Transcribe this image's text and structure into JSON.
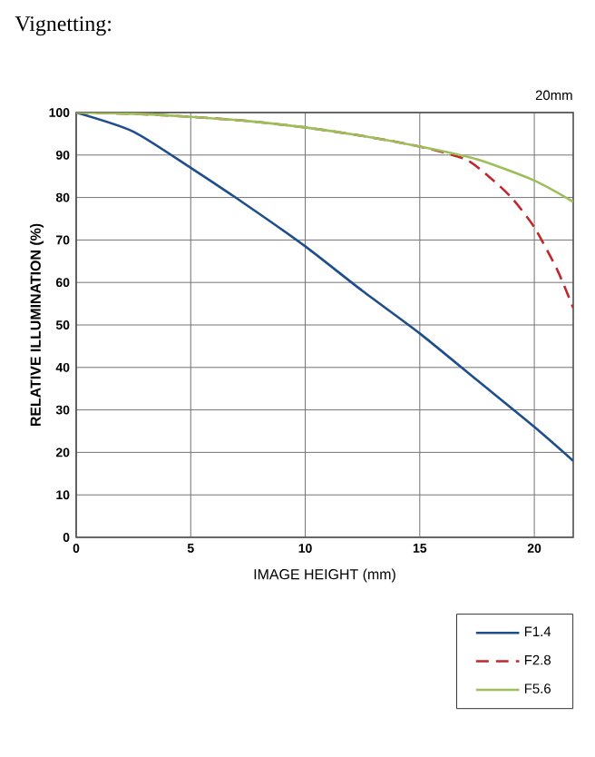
{
  "chart_data": {
    "type": "line",
    "title": "Vignetting:",
    "subtitle": "20mm",
    "xlabel": "IMAGE HEIGHT (mm)",
    "ylabel": "RELATIVE ILLUMINATION (%)",
    "xlim": [
      0,
      21.7
    ],
    "ylim": [
      0,
      100
    ],
    "xticks": [
      0,
      5,
      10,
      15,
      20
    ],
    "yticks": [
      0,
      10,
      20,
      30,
      40,
      50,
      60,
      70,
      80,
      90,
      100
    ],
    "grid": true,
    "legend": "bottom right",
    "marker": "none",
    "series": [
      {
        "name": "F1.4",
        "color": "#1f4e8c",
        "line_style": "solid",
        "x": [
          0,
          2.5,
          5,
          7.5,
          10,
          12.5,
          15,
          17.5,
          20,
          21.7
        ],
        "values": [
          100,
          95.5,
          87,
          78,
          68.5,
          58,
          48,
          37,
          26,
          18
        ]
      },
      {
        "name": "F2.8",
        "color": "#c0282d",
        "line_style": "dashed",
        "x": [
          0,
          2.5,
          5,
          7.5,
          10,
          12.5,
          15,
          17,
          18,
          19,
          20,
          21,
          21.7
        ],
        "values": [
          100,
          99.7,
          99,
          98,
          96.5,
          94.5,
          92,
          89,
          85,
          80,
          73,
          63,
          54
        ]
      },
      {
        "name": "F5.6",
        "color": "#9dbf5a",
        "line_style": "solid",
        "x": [
          0,
          2.5,
          5,
          7.5,
          10,
          12.5,
          15,
          17.5,
          20,
          21.7
        ],
        "values": [
          100,
          99.7,
          99,
          98,
          96.5,
          94.5,
          92,
          89,
          84,
          79
        ]
      }
    ]
  }
}
